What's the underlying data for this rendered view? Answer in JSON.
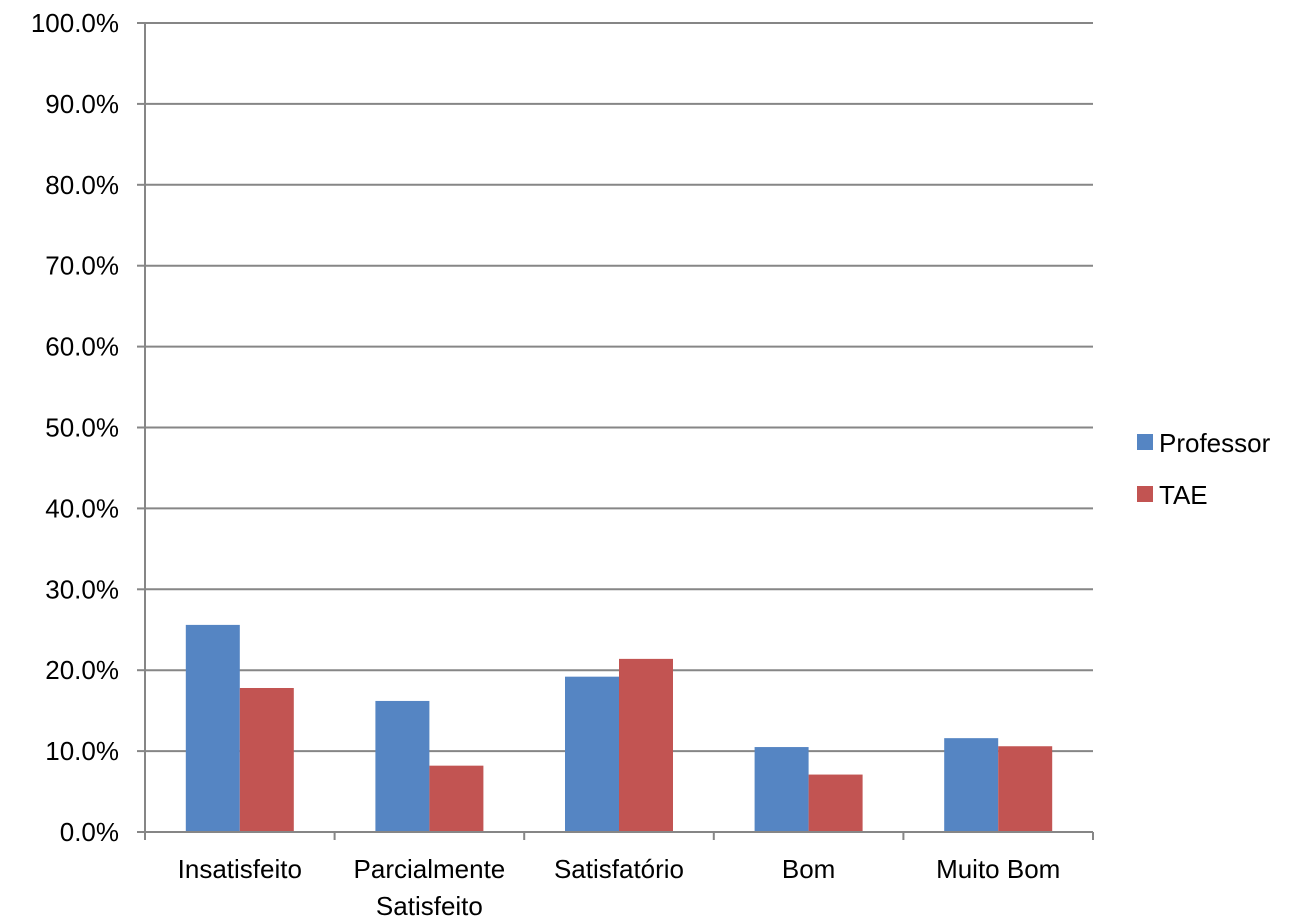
{
  "chart_data": {
    "type": "bar",
    "categories": [
      [
        "Insatisfeito"
      ],
      [
        "Parcialmente",
        "Satisfeito"
      ],
      [
        "Satisfatório"
      ],
      [
        "Bom"
      ],
      [
        "Muito Bom"
      ]
    ],
    "series": [
      {
        "name": "Professor",
        "color": "#5585c3",
        "values": [
          25.6,
          16.2,
          19.2,
          10.5,
          11.6
        ]
      },
      {
        "name": "TAE",
        "color": "#c25452",
        "values": [
          17.8,
          8.2,
          21.4,
          7.1,
          10.6
        ]
      }
    ],
    "yticks": [
      "0.0%",
      "10.0%",
      "20.0%",
      "30.0%",
      "40.0%",
      "50.0%",
      "60.0%",
      "70.0%",
      "80.0%",
      "90.0%",
      "100.0%"
    ],
    "ylim": [
      0,
      100
    ],
    "grid": true,
    "legend_position": "right",
    "title": "",
    "xlabel": "",
    "ylabel": ""
  }
}
